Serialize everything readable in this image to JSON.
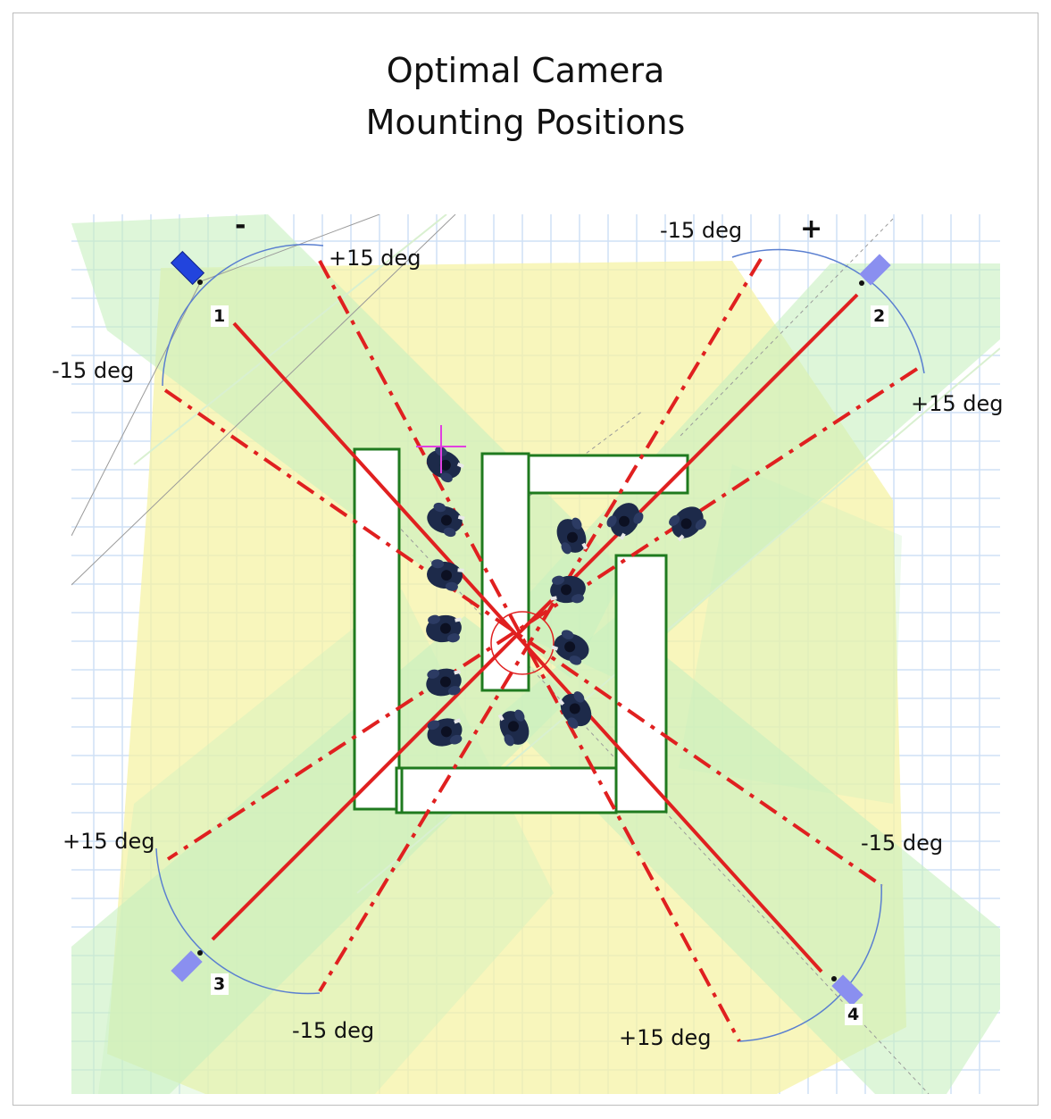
{
  "title": {
    "line1": "Optimal Camera",
    "line2": "Mounting Positions"
  },
  "signs": {
    "minus": "-",
    "plus": "+"
  },
  "cameras": [
    {
      "number": "1",
      "plus_label": "+15 deg",
      "minus_label": "-15 deg"
    },
    {
      "number": "2",
      "plus_label": "+15 deg",
      "minus_label": "-15 deg"
    },
    {
      "number": "3",
      "plus_label": "+15 deg",
      "minus_label": "-15 deg"
    },
    {
      "number": "4",
      "plus_label": "+15 deg",
      "minus_label": "-15 deg"
    }
  ],
  "colors": {
    "grid": "#cfe0f5",
    "coverage_yellow": "#f6f3a6",
    "coverage_green": "#c8f0c0",
    "axis_red": "#e02020",
    "arc_blue": "#5a7fd0",
    "counter_green": "#1f7a1f",
    "camera_dark": "#2244dd",
    "camera_light": "#8a8ff0",
    "target_magenta": "#e040e0",
    "person": "#1d2a4a"
  },
  "icons": {
    "camera": "camera-icon",
    "person": "person-icon",
    "target": "crosshair-icon"
  }
}
